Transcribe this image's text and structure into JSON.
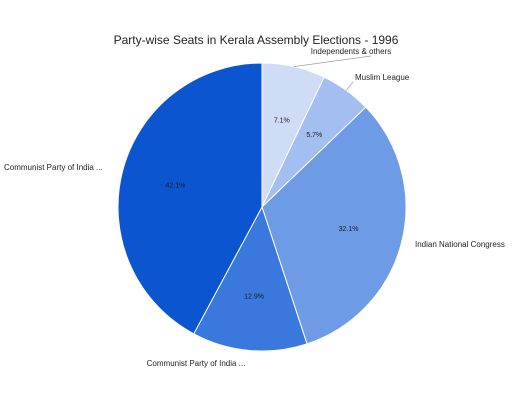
{
  "chart_data": {
    "type": "pie",
    "title": "Party-wise Seats in Kerala Assembly Elections - 1996",
    "categories": [
      "Independents & others",
      "Muslim League",
      "Indian National Congress",
      "Communist Party of India ...",
      "Communist Party of India ..."
    ],
    "values": [
      7.1,
      5.7,
      32.1,
      12.9,
      42.1
    ],
    "value_labels": [
      "7.1%",
      "5.7%",
      "32.1%",
      "12.9%",
      "42.1%"
    ],
    "colors": [
      "#cfdcf6",
      "#a3bff1",
      "#6d9be6",
      "#3b78dd",
      "#0b56d0"
    ],
    "start_angle_deg": 0,
    "direction": "clockwise",
    "legend": "none"
  }
}
